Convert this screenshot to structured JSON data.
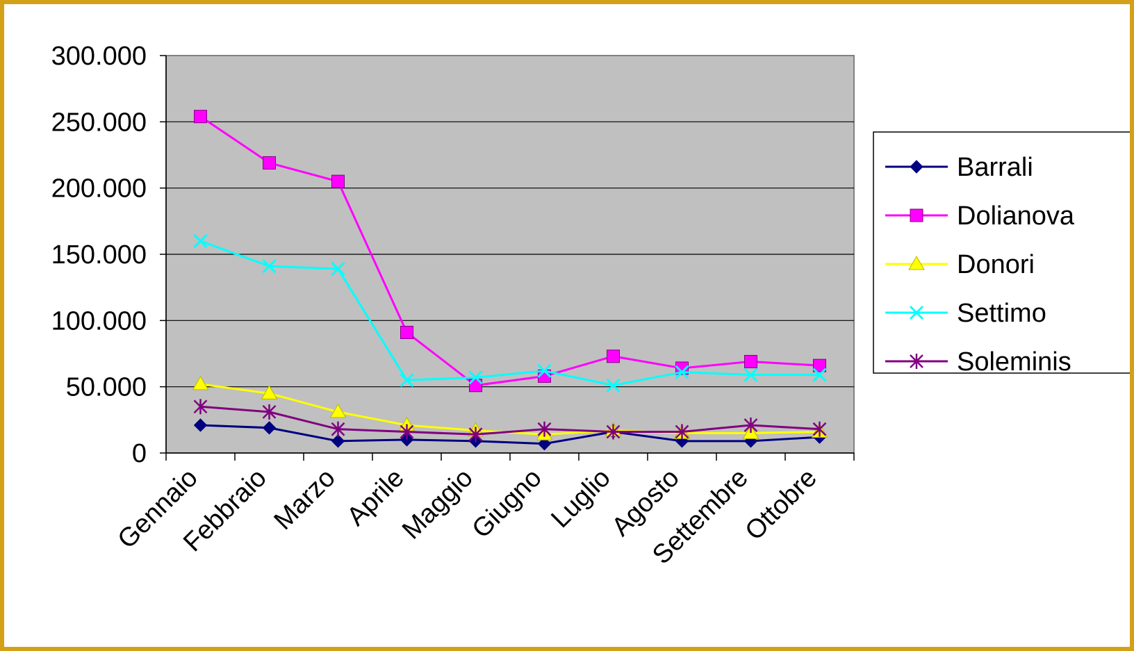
{
  "chart_data": {
    "type": "line",
    "categories": [
      "Gennaio",
      "Febbraio",
      "Marzo",
      "Aprile",
      "Maggio",
      "Giugno",
      "Luglio",
      "Agosto",
      "Settembre",
      "Ottobre"
    ],
    "ylim": [
      0,
      300000
    ],
    "yticks": [
      0,
      50000,
      100000,
      150000,
      200000,
      250000,
      300000
    ],
    "ytick_labels": [
      "0",
      "50.000",
      "100.000",
      "150.000",
      "200.000",
      "250.000",
      "300.000"
    ],
    "grid": true,
    "plot_background": "#c0c0c0",
    "legend_position": "right",
    "series": [
      {
        "name": "Barrali",
        "color": "#000080",
        "marker": "diamond",
        "values": [
          21000,
          19000,
          9000,
          10000,
          9000,
          7000,
          16000,
          9000,
          9000,
          12000
        ]
      },
      {
        "name": "Dolianova",
        "color": "#ff00ff",
        "marker": "square",
        "values": [
          254000,
          219000,
          205000,
          91000,
          51000,
          58000,
          73000,
          64000,
          69000,
          66000
        ]
      },
      {
        "name": "Donori",
        "color": "#ffff00",
        "marker": "triangle",
        "values": [
          52000,
          45000,
          31000,
          21000,
          17000,
          14000,
          17000,
          15000,
          15000,
          16000
        ]
      },
      {
        "name": "Settimo",
        "color": "#00ffff",
        "marker": "x",
        "values": [
          160000,
          141000,
          139000,
          55000,
          57000,
          62000,
          51000,
          61000,
          59000,
          59000
        ]
      },
      {
        "name": "Soleminis",
        "color": "#800080",
        "marker": "star",
        "values": [
          35000,
          31000,
          18000,
          16000,
          14000,
          18000,
          16000,
          16000,
          21000,
          18000
        ]
      }
    ]
  }
}
